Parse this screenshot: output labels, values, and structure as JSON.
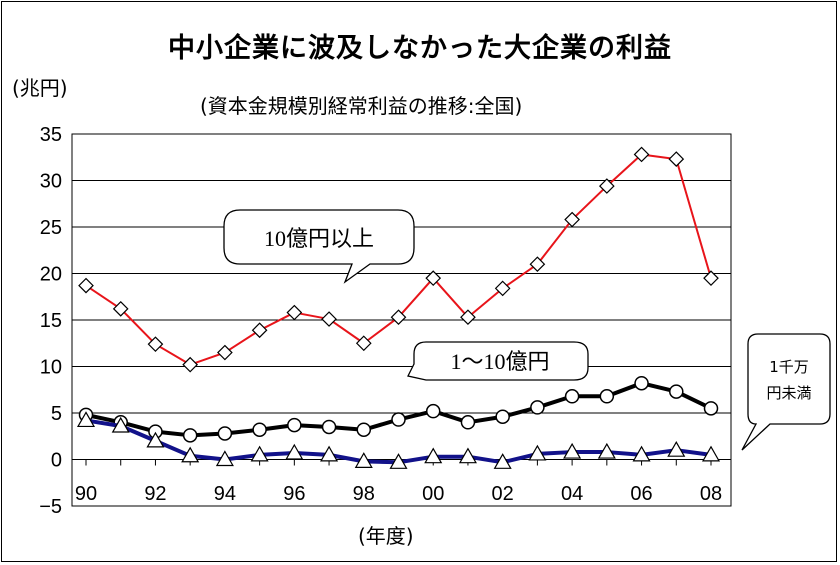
{
  "chart_data": {
    "type": "line",
    "title": "中小企業に波及しなかった大企業の利益",
    "subtitle": "(資本金規模別経常利益の推移:全国)",
    "ylabel": "(兆円)",
    "xlabel": "(年度)",
    "ylim": [
      -5,
      35
    ],
    "yticks": [
      "35",
      "30",
      "25",
      "20",
      "15",
      "10",
      "5",
      "0",
      "−5"
    ],
    "xtick_labels": [
      "90",
      "92",
      "94",
      "96",
      "98",
      "00",
      "02",
      "04",
      "06",
      "08"
    ],
    "x": [
      "1990",
      "1991",
      "1992",
      "1993",
      "1994",
      "1995",
      "1996",
      "1997",
      "1998",
      "1999",
      "2000",
      "2001",
      "2002",
      "2003",
      "2004",
      "2005",
      "2006",
      "2007",
      "2008"
    ],
    "grid": true,
    "series": [
      {
        "name": "10億円以上",
        "marker": "diamond",
        "color": "#e8141a",
        "values": [
          18.7,
          16.2,
          12.4,
          10.2,
          11.5,
          13.9,
          15.8,
          15.1,
          12.5,
          15.3,
          19.5,
          15.3,
          18.4,
          21.0,
          25.8,
          29.4,
          32.8,
          32.3,
          19.5
        ]
      },
      {
        "name": "1〜10億円",
        "marker": "circle",
        "color": "#000000",
        "values": [
          4.8,
          4.0,
          3.0,
          2.6,
          2.8,
          3.2,
          3.7,
          3.5,
          3.2,
          4.3,
          5.2,
          4.0,
          4.6,
          5.6,
          6.8,
          6.8,
          8.2,
          7.3,
          5.5
        ]
      },
      {
        "name": "1千万円未満",
        "marker": "triangle",
        "color": "#12128a",
        "values": [
          4.2,
          3.6,
          2.0,
          0.4,
          0.0,
          0.5,
          0.7,
          0.5,
          -0.2,
          -0.3,
          0.3,
          0.3,
          -0.3,
          0.6,
          0.8,
          0.8,
          0.5,
          1.0,
          0.5
        ]
      }
    ],
    "callouts": [
      {
        "text": "10億円以上"
      },
      {
        "text": "1〜10億円"
      },
      {
        "line1": "1千万",
        "line2": "円未満"
      }
    ]
  }
}
